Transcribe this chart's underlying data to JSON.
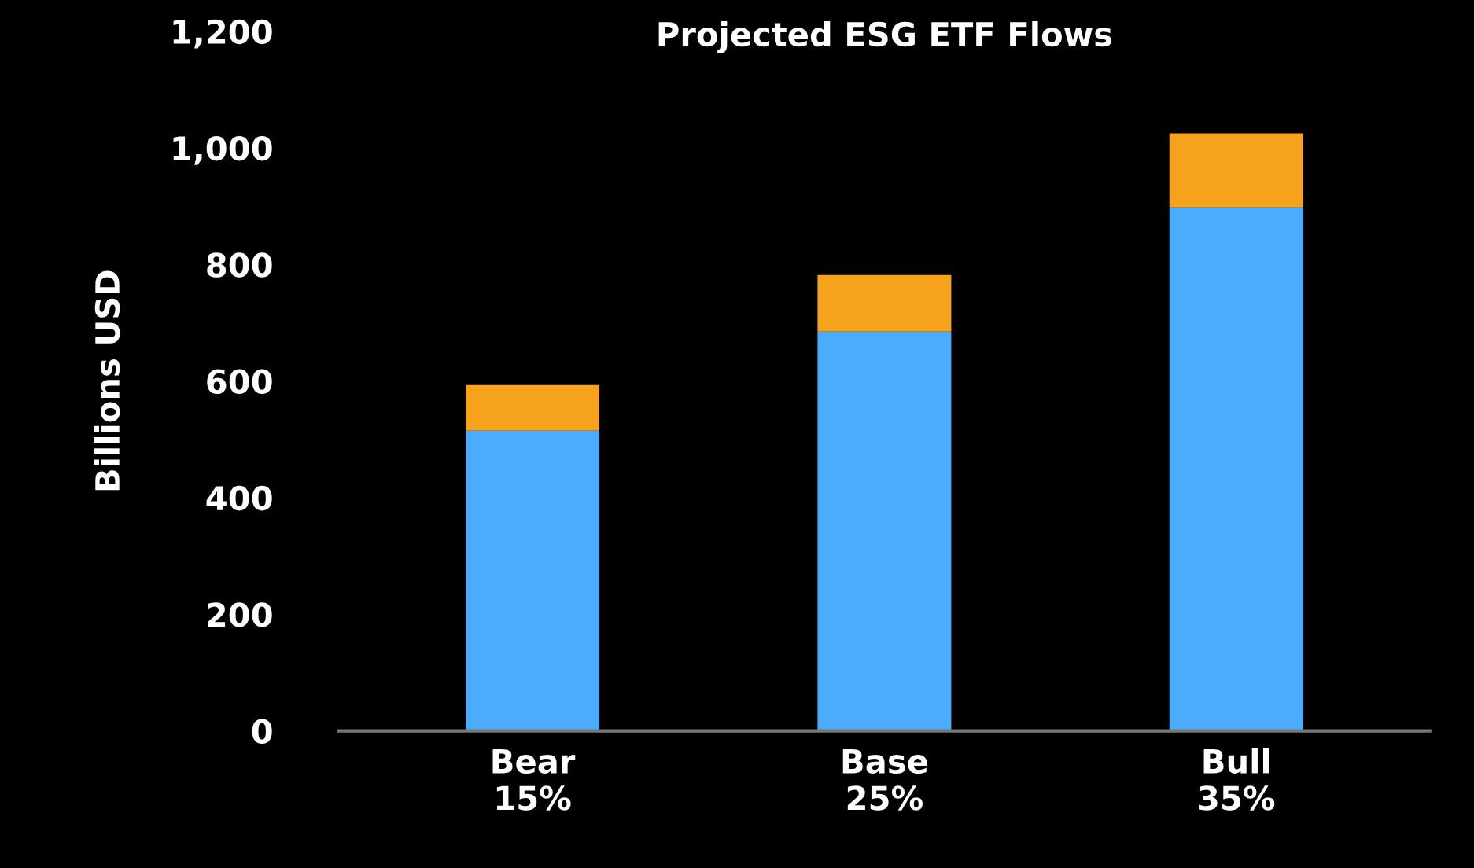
{
  "chart_data": {
    "type": "bar",
    "title": "Projected ESG ETF Flows",
    "ylabel": "Billions USD",
    "categories": [
      "Bear\n15%",
      "Base\n25%",
      "Bull\n35%"
    ],
    "stacked": true,
    "series": [
      {
        "color": "#4aacfa",
        "values": [
          515,
          685,
          898
        ]
      },
      {
        "color": "#f7a21c",
        "values": [
          78,
          97,
          127
        ]
      }
    ],
    "ylim": [
      0,
      1200
    ],
    "yticks": [
      0,
      200,
      400,
      600,
      800,
      {
        "value": 1000,
        "label": "1,000"
      },
      {
        "value": 1200,
        "label": "1,200"
      }
    ],
    "grid": false,
    "legend": false
  }
}
